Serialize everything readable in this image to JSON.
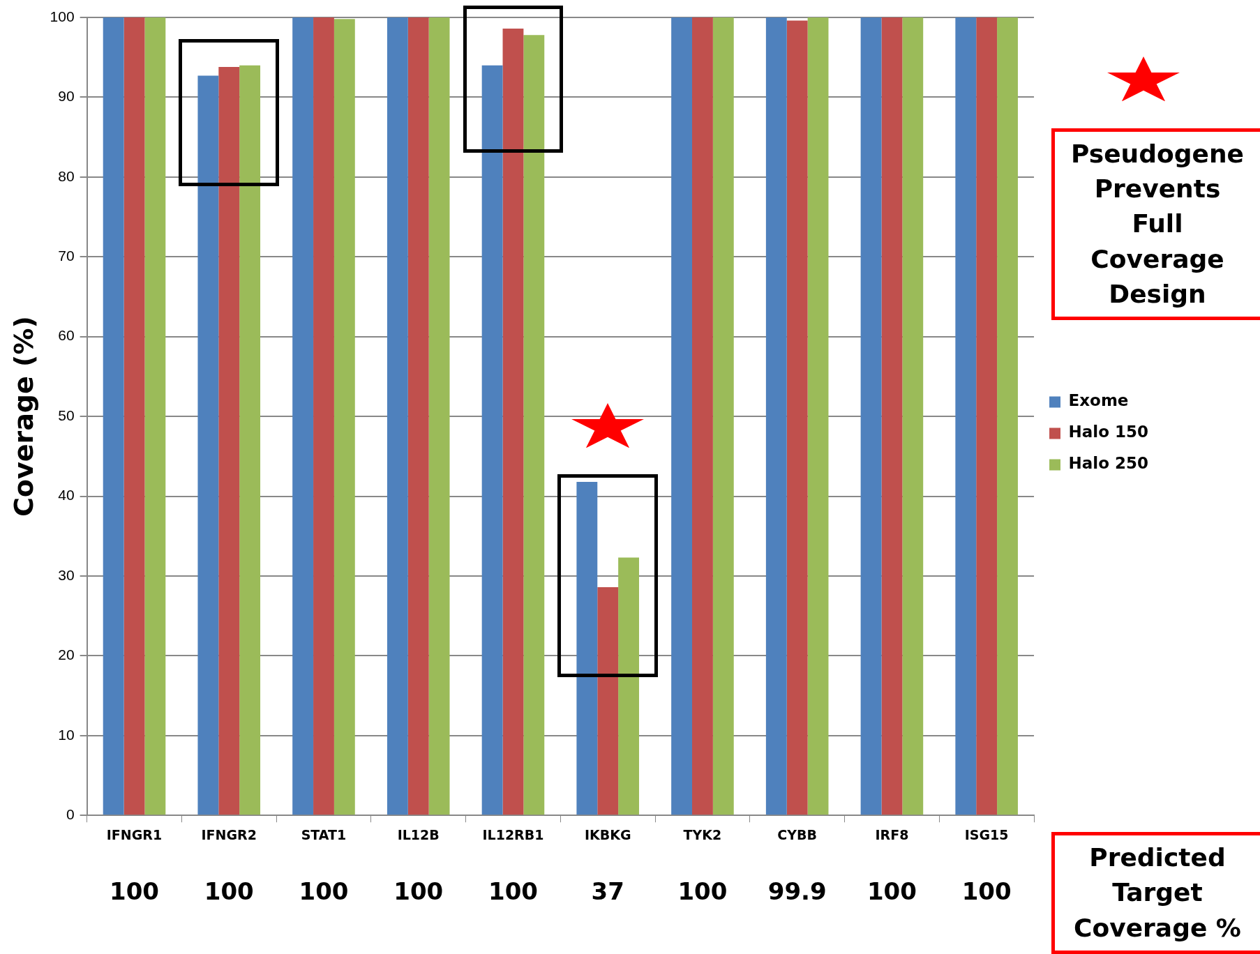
{
  "chart_data": {
    "type": "bar",
    "ylabel": "Coverage (%)",
    "categories": [
      "IFNGR1",
      "IFNGR2",
      "STAT1",
      "IL12B",
      "IL12RB1",
      "IKBKG",
      "TYK2",
      "CYBB",
      "IRF8",
      "ISG15"
    ],
    "series": [
      {
        "name": "Exome",
        "color": "#4f81bd",
        "values": [
          100,
          92.7,
          100,
          100,
          94.0,
          41.8,
          100,
          100,
          100,
          100
        ]
      },
      {
        "name": "Halo 150",
        "color": "#c0504d",
        "values": [
          100,
          93.8,
          100,
          100,
          98.6,
          28.6,
          100,
          99.6,
          100,
          100
        ]
      },
      {
        "name": "Halo 250",
        "color": "#9bbb59",
        "values": [
          100,
          94.0,
          99.8,
          100,
          97.8,
          32.3,
          100,
          100,
          100,
          100
        ]
      }
    ],
    "ylim": [
      0,
      100
    ],
    "yticks": [
      0,
      10,
      20,
      30,
      40,
      50,
      60,
      70,
      80,
      90,
      100
    ],
    "grid": "y",
    "legend": "right",
    "annotations": [
      "Pseudogene Prevents Full Coverage Design",
      "Predicted Target Coverage %",
      "100",
      "100",
      "100",
      "100",
      "100",
      "37",
      "100",
      "99.9",
      "100",
      "100"
    ]
  }
}
